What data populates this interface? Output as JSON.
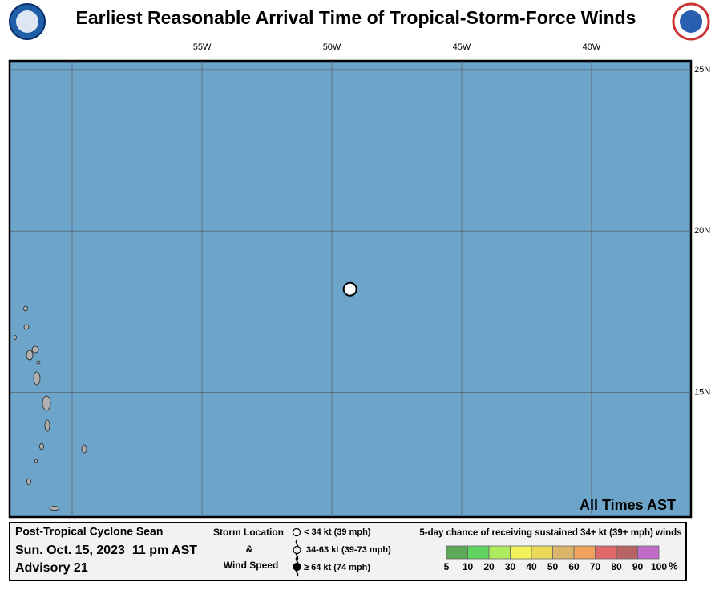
{
  "header": {
    "title": "Earliest Reasonable Arrival Time of Tropical-Storm-Force Winds"
  },
  "map": {
    "lon_range": [
      -62.41,
      -36.17
    ],
    "lat_range": [
      11.14,
      25.27
    ],
    "lon_ticks": [
      {
        "value": -55,
        "label": "55W"
      },
      {
        "value": -50,
        "label": "50W"
      },
      {
        "value": -45,
        "label": "45W"
      },
      {
        "value": -40,
        "label": "40W"
      }
    ],
    "lat_ticks": [
      {
        "value": 25,
        "label": "25N"
      },
      {
        "value": 20,
        "label": "20N"
      },
      {
        "value": 15,
        "label": "15N"
      }
    ],
    "storm": {
      "lon": -49.3,
      "lat": 18.2
    },
    "note": "All Times AST"
  },
  "legend": {
    "storm_name": "Post-Tropical Cyclone Sean",
    "date": "Sun. Oct. 15, 2023  11 pm AST",
    "advisory": "Advisory 21",
    "storm_location": "Storm Location",
    "amp": "&",
    "wind_speed": "Wind Speed",
    "symbols": [
      "< 34 kt (39 mph)",
      "34-63 kt (39-73 mph)",
      "≥ 64 kt (74 mph)"
    ],
    "scale_title": "5-day chance of receiving sustained 34+ kt (39+ mph) winds",
    "scale_colors": [
      "#5fa95a",
      "#5fd55f",
      "#aeea5e",
      "#f2f25a",
      "#ecd95c",
      "#dcb46a",
      "#f0a35e",
      "#e06a6a",
      "#b86464",
      "#c06cc6"
    ],
    "scale_labels": [
      5,
      10,
      20,
      30,
      40,
      50,
      60,
      70,
      80,
      90,
      100
    ],
    "unit": "%"
  }
}
